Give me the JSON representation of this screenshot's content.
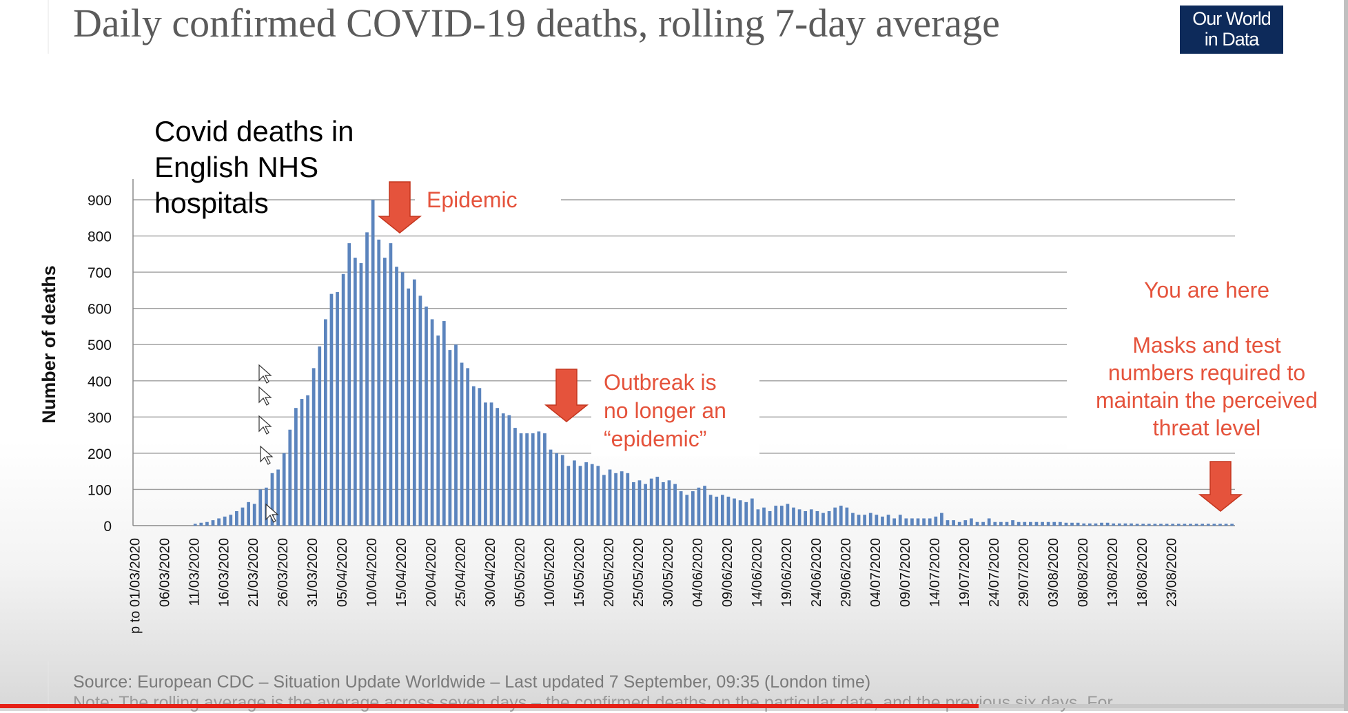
{
  "owid": {
    "title": "Daily confirmed COVID-19 deaths, rolling 7-day average",
    "logo_line1": "Our World",
    "logo_line2": "in Data",
    "source": "Source: European CDC – Situation Update Worldwide – Last updated 7 September, 09:35 (London time)",
    "note": "Note: The rolling average is the average across seven days – the confirmed deaths on the particular date, and the previous six days. For",
    "logo_color": "#0d2a5a"
  },
  "chart_data": {
    "type": "bar",
    "title": "Covid deaths in English NHS hospitals",
    "title_lines": [
      "Covid deaths in",
      "English NHS",
      "hospitals"
    ],
    "ylabel": "Number of deaths",
    "xlabel": "",
    "ylim": [
      0,
      900
    ],
    "yticks": [
      0,
      100,
      200,
      300,
      400,
      500,
      600,
      700,
      800,
      900
    ],
    "grid": true,
    "bar_color": "#5b84bd",
    "start_date": "01/03/2020",
    "x_tick_labels": [
      "p to 01/03/2020",
      "06/03/2020",
      "11/03/2020",
      "16/03/2020",
      "21/03/2020",
      "26/03/2020",
      "31/03/2020",
      "05/04/2020",
      "10/04/2020",
      "15/04/2020",
      "20/04/2020",
      "25/04/2020",
      "30/04/2020",
      "05/05/2020",
      "10/05/2020",
      "15/05/2020",
      "20/05/2020",
      "25/05/2020",
      "30/05/2020",
      "04/06/2020",
      "09/06/2020",
      "14/06/2020",
      "19/06/2020",
      "24/06/2020",
      "29/06/2020",
      "04/07/2020",
      "09/07/2020",
      "14/07/2020",
      "19/07/2020",
      "24/07/2020",
      "29/07/2020",
      "03/08/2020",
      "08/08/2020",
      "13/08/2020",
      "18/08/2020",
      "23/08/2020"
    ],
    "values": [
      0,
      0,
      0,
      0,
      0,
      0,
      0,
      0,
      0,
      0,
      5,
      8,
      10,
      15,
      20,
      25,
      30,
      40,
      50,
      65,
      60,
      100,
      105,
      145,
      155,
      200,
      265,
      325,
      350,
      360,
      435,
      495,
      570,
      640,
      645,
      695,
      780,
      740,
      725,
      810,
      900,
      790,
      740,
      780,
      715,
      700,
      655,
      680,
      635,
      605,
      570,
      525,
      565,
      485,
      500,
      450,
      435,
      385,
      380,
      340,
      340,
      325,
      310,
      305,
      270,
      255,
      255,
      255,
      260,
      255,
      210,
      200,
      195,
      165,
      180,
      165,
      175,
      170,
      165,
      140,
      155,
      145,
      150,
      145,
      120,
      125,
      115,
      130,
      135,
      120,
      125,
      115,
      95,
      85,
      95,
      105,
      110,
      85,
      80,
      85,
      80,
      75,
      70,
      65,
      75,
      45,
      50,
      40,
      55,
      55,
      60,
      50,
      45,
      40,
      45,
      40,
      35,
      40,
      50,
      55,
      50,
      35,
      30,
      30,
      35,
      30,
      25,
      30,
      20,
      30,
      20,
      20,
      20,
      20,
      20,
      25,
      35,
      15,
      15,
      10,
      15,
      20,
      10,
      10,
      20,
      10,
      10,
      10,
      15,
      10,
      10,
      10,
      10,
      10,
      10,
      10,
      10,
      8,
      8,
      8,
      6,
      6,
      6,
      8,
      8,
      6,
      6,
      6,
      6,
      5,
      5,
      5,
      5,
      5,
      5,
      5,
      5,
      5,
      5,
      5,
      5,
      5,
      5,
      5,
      5,
      5
    ],
    "annotations": [
      {
        "text_lines": [
          "Epidemic"
        ],
        "color": "#e5533c"
      },
      {
        "text_lines": [
          "Outbreak is",
          "no longer an",
          "“epidemic”"
        ],
        "color": "#e5533c"
      },
      {
        "text_lines": [
          "You are here",
          "",
          "Masks and test",
          "numbers required to",
          "maintain the perceived",
          "threat level"
        ],
        "color": "#e5533c"
      }
    ]
  }
}
